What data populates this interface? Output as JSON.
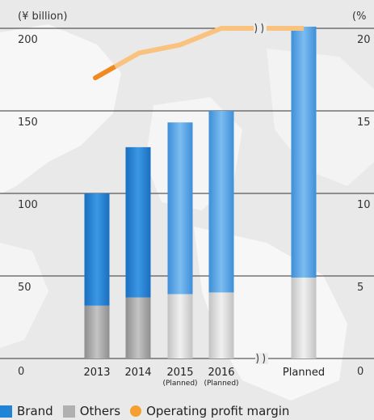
{
  "chart_data": {
    "type": "bar",
    "stacked": true,
    "left_axis_unit": "(¥ billion)",
    "right_axis_unit": "(%",
    "categories": [
      {
        "label": "2013",
        "sub": ""
      },
      {
        "label": "2014",
        "sub": ""
      },
      {
        "label": "2015",
        "sub": "(Planned)"
      },
      {
        "label": "2016",
        "sub": "(Planned)"
      },
      {
        "label": "Planned",
        "sub": ""
      }
    ],
    "series": [
      {
        "name": "Others",
        "values": [
          32,
          37,
          39,
          40,
          49
        ],
        "planned": [
          false,
          false,
          true,
          true,
          true
        ]
      },
      {
        "name": "Brand",
        "values": [
          68,
          91,
          104,
          110,
          152
        ],
        "planned": [
          false,
          false,
          true,
          true,
          true
        ]
      }
    ],
    "line_series": {
      "name": "Operating profit margin",
      "x": [
        "2013",
        "2014",
        "2015",
        "2016",
        "Planned"
      ],
      "values": [
        17.0,
        18.5,
        19.0,
        20.0,
        20.0
      ],
      "planned": [
        false,
        true,
        true,
        true,
        true
      ]
    },
    "ylim_left": [
      0,
      200
    ],
    "ylim_right": [
      0,
      20
    ],
    "left_ticks": [
      "0",
      "50",
      "100",
      "150",
      "200"
    ],
    "right_ticks": [
      "0",
      "5",
      "10",
      "15",
      "20"
    ],
    "axis_break": true,
    "grid": true,
    "legend_position": "bottom",
    "colors": {
      "brand": "#1f84d6",
      "brand_light": "#3a97e0",
      "others": "#a8a8a8",
      "others_light": "#d6d6d6",
      "line": "#f08a20",
      "line_light": "#f9c27e"
    }
  },
  "legend": {
    "brand": "Brand",
    "others": "Others",
    "margin": "Operating profit margin"
  }
}
